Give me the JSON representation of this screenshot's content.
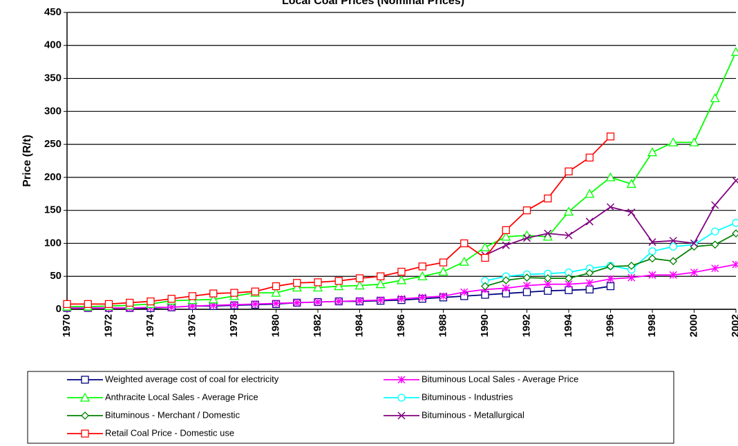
{
  "chart_data": {
    "type": "line",
    "title": "Local Coal Prices (Nominal Prices)",
    "y_label": "Price (R/t)",
    "x": [
      1970,
      1971,
      1972,
      1973,
      1974,
      1975,
      1976,
      1977,
      1978,
      1979,
      1980,
      1981,
      1982,
      1983,
      1984,
      1985,
      1986,
      1987,
      1988,
      1989,
      1990,
      1991,
      1992,
      1993,
      1994,
      1995,
      1996,
      1997,
      1998,
      1999,
      2000,
      2001,
      2002
    ],
    "xlim": [
      1970,
      2002
    ],
    "xticks": [
      1970,
      1972,
      1974,
      1976,
      1978,
      1980,
      1982,
      1984,
      1986,
      1988,
      1990,
      1992,
      1994,
      1996,
      1998,
      2000,
      2002
    ],
    "ylim": [
      0,
      450
    ],
    "yticks": [
      0,
      50,
      100,
      150,
      200,
      250,
      300,
      350,
      400,
      450
    ],
    "grid": true,
    "legend": "bottom",
    "series": [
      {
        "name": "Weighted average cost of coal for electricity",
        "color": "#000080",
        "marker": "square",
        "values": [
          2,
          2,
          2,
          2,
          2,
          3,
          5,
          5,
          6,
          7,
          8,
          10,
          11,
          12,
          12,
          13,
          14,
          16,
          18,
          20,
          22,
          24,
          26,
          28,
          29,
          30,
          35,
          null,
          null,
          null,
          null,
          null,
          null
        ]
      },
      {
        "name": "Bituminous Local Sales - Average Price",
        "color": "#ff00ff",
        "marker": "star",
        "values": [
          2,
          2,
          2,
          2,
          3,
          3,
          5,
          6,
          7,
          8,
          9,
          10,
          11,
          12,
          13,
          14,
          16,
          18,
          20,
          26,
          30,
          32,
          36,
          38,
          38,
          40,
          46,
          48,
          52,
          52,
          56,
          62,
          68
        ]
      },
      {
        "name": "Anthracite Local Sales - Average Price",
        "color": "#00ff00",
        "marker": "triangle",
        "values": [
          4,
          4,
          5,
          6,
          8,
          13,
          14,
          15,
          20,
          25,
          25,
          33,
          33,
          35,
          36,
          38,
          44,
          50,
          57,
          72,
          94,
          110,
          112,
          110,
          148,
          175,
          200,
          190,
          238,
          253,
          253,
          320,
          390
        ]
      },
      {
        "name": "Bituminous - Industries",
        "color": "#00ffff",
        "marker": "circle",
        "values": [
          null,
          null,
          null,
          null,
          null,
          null,
          null,
          null,
          null,
          null,
          null,
          null,
          null,
          null,
          null,
          null,
          null,
          null,
          null,
          null,
          43,
          50,
          53,
          54,
          56,
          62,
          66,
          60,
          88,
          95,
          98,
          118,
          131
        ]
      },
      {
        "name": "Bituminous - Merchant / Domestic",
        "color": "#008000",
        "marker": "diamond",
        "values": [
          null,
          null,
          null,
          null,
          null,
          null,
          null,
          null,
          null,
          null,
          null,
          null,
          null,
          null,
          null,
          null,
          null,
          null,
          null,
          null,
          35,
          44,
          48,
          47,
          47,
          55,
          65,
          66,
          77,
          73,
          95,
          98,
          115
        ]
      },
      {
        "name": "Bituminous - Metallurgical",
        "color": "#800080",
        "marker": "x",
        "values": [
          null,
          null,
          null,
          null,
          null,
          null,
          null,
          null,
          null,
          null,
          null,
          null,
          null,
          null,
          null,
          null,
          null,
          null,
          null,
          null,
          82,
          97,
          108,
          115,
          112,
          133,
          155,
          147,
          102,
          104,
          100,
          158,
          195
        ]
      },
      {
        "name": "Retail Coal Price - Domestic use",
        "color": "#ff0000",
        "marker": "square",
        "values": [
          8,
          8,
          8,
          10,
          12,
          16,
          20,
          24,
          25,
          27,
          35,
          40,
          41,
          43,
          47,
          50,
          57,
          65,
          71,
          100,
          78,
          120,
          150,
          168,
          209,
          230,
          262,
          null,
          null,
          null,
          null,
          null,
          null
        ]
      }
    ]
  }
}
